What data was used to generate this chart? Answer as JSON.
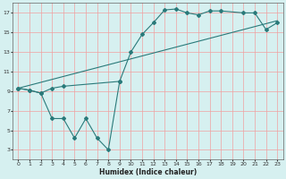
{
  "bg_color": "#d6f0f0",
  "grid_color": "#f0a0a0",
  "line_color": "#2a7a7a",
  "xlabel": "Humidex (Indice chaleur)",
  "xlim": [
    -0.5,
    23.5
  ],
  "ylim": [
    2,
    18
  ],
  "xticks": [
    0,
    1,
    2,
    3,
    4,
    5,
    6,
    7,
    8,
    9,
    10,
    11,
    12,
    13,
    14,
    15,
    16,
    17,
    18,
    19,
    20,
    21,
    22,
    23
  ],
  "yticks": [
    3,
    5,
    7,
    9,
    11,
    13,
    15,
    17
  ],
  "line1_x": [
    0,
    1,
    2,
    3,
    4,
    9,
    10,
    11,
    12,
    13,
    14,
    15,
    16,
    17,
    18,
    20,
    21,
    22,
    23
  ],
  "line1_y": [
    9.3,
    9.1,
    8.8,
    9.3,
    9.5,
    10.0,
    13.0,
    14.8,
    16.0,
    17.3,
    17.4,
    17.0,
    16.8,
    17.2,
    17.2,
    17.0,
    17.0,
    15.3,
    16.0
  ],
  "line2_x": [
    0,
    23
  ],
  "line2_y": [
    9.3,
    16.2
  ],
  "line3_x": [
    0,
    1,
    2,
    3,
    4,
    5,
    6,
    7,
    8,
    9
  ],
  "line3_y": [
    9.3,
    9.1,
    8.8,
    6.2,
    6.2,
    4.2,
    6.2,
    4.2,
    3.0,
    10.0
  ]
}
